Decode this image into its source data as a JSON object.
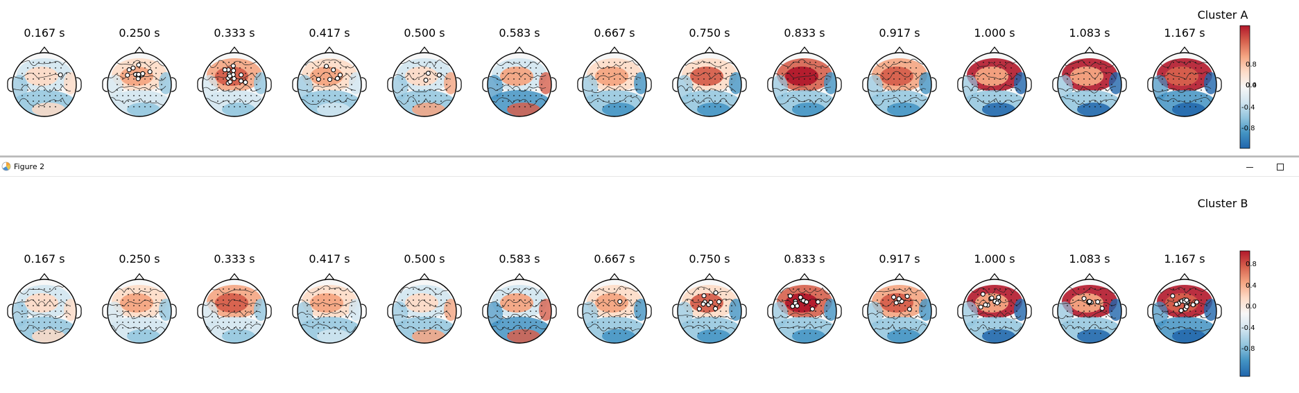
{
  "window_title": "Figure 2",
  "colorbar_ticks": [
    "0.8",
    "0.4",
    "0.0",
    "-0.4",
    "-0.8"
  ],
  "colors": {
    "strong_red": "#b2182b",
    "red": "#d6604d",
    "light_red": "#f4a582",
    "pale_red": "#fddbc7",
    "neutral": "#f7f7f7",
    "pale_blue": "#d1e5f0",
    "light_blue": "#92c5de",
    "blue": "#4393c3",
    "strong_blue": "#2166ac"
  },
  "panels": [
    {
      "title": "Cluster A",
      "times": [
        "0.167 s",
        "0.250 s",
        "0.333 s",
        "0.417 s",
        "0.500 s",
        "0.583 s",
        "0.667 s",
        "0.750 s",
        "0.833 s",
        "0.917 s",
        "1.000 s",
        "1.083 s",
        "1.167 s"
      ]
    },
    {
      "title": "Cluster B",
      "times": [
        "0.167 s",
        "0.250 s",
        "0.333 s",
        "0.417 s",
        "0.500 s",
        "0.583 s",
        "0.667 s",
        "0.750 s",
        "0.833 s",
        "0.917 s",
        "1.000 s",
        "1.083 s",
        "1.167 s"
      ]
    }
  ]
}
